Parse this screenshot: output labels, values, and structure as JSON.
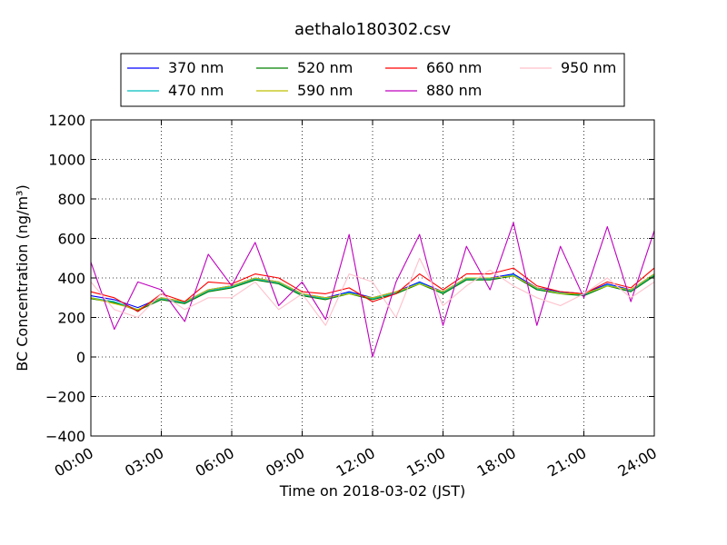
{
  "chart_data": {
    "type": "line",
    "title": "aethalo180302.csv",
    "xlabel": "Time on 2018-03-02 (JST)",
    "ylabel": "BC Concentration (ng/m³)",
    "xlim": [
      "2018-03-02 00:00",
      "2018-03-03 00:00"
    ],
    "ylim": [
      -400,
      1200
    ],
    "grid": true,
    "legend_position": "top, above plot",
    "x_ticks": [
      "00:00",
      "03:00",
      "06:00",
      "09:00",
      "12:00",
      "15:00",
      "18:00",
      "21:00",
      "24:00"
    ],
    "y_ticks": [
      -400,
      -200,
      0,
      200,
      400,
      600,
      800,
      1000,
      1200
    ],
    "x_sample_times": [
      "00:00",
      "01:00",
      "02:00",
      "03:00",
      "04:00",
      "05:00",
      "06:00",
      "07:00",
      "08:00",
      "09:00",
      "10:00",
      "11:00",
      "12:00",
      "13:00",
      "14:00",
      "15:00",
      "16:00",
      "17:00",
      "18:00",
      "19:00",
      "20:00",
      "21:00",
      "22:00",
      "23:00",
      "24:00"
    ],
    "series": [
      {
        "name": "370 nm",
        "color": "#0000ff",
        "values": [
          310,
          290,
          250,
          300,
          280,
          340,
          360,
          400,
          380,
          320,
          300,
          330,
          300,
          330,
          380,
          330,
          400,
          400,
          420,
          350,
          330,
          320,
          370,
          340,
          420
        ]
      },
      {
        "name": "470 nm",
        "color": "#00bfbf",
        "values": [
          300,
          280,
          240,
          295,
          275,
          335,
          355,
          395,
          375,
          315,
          295,
          325,
          295,
          325,
          375,
          325,
          395,
          395,
          415,
          345,
          325,
          315,
          365,
          335,
          415
        ]
      },
      {
        "name": "520 nm",
        "color": "#008000",
        "values": [
          295,
          275,
          235,
          290,
          270,
          330,
          350,
          390,
          370,
          310,
          290,
          320,
          290,
          320,
          370,
          320,
          390,
          390,
          410,
          340,
          320,
          310,
          360,
          330,
          410
        ]
      },
      {
        "name": "590 nm",
        "color": "#bfbf00",
        "values": [
          300,
          270,
          240,
          300,
          280,
          340,
          360,
          400,
          380,
          320,
          300,
          320,
          300,
          330,
          370,
          330,
          400,
          400,
          410,
          350,
          320,
          320,
          360,
          340,
          420
        ]
      },
      {
        "name": "660 nm",
        "color": "#ff0000",
        "values": [
          330,
          300,
          230,
          320,
          280,
          380,
          370,
          420,
          400,
          330,
          320,
          350,
          280,
          320,
          420,
          340,
          420,
          420,
          450,
          360,
          330,
          320,
          380,
          350,
          450
        ]
      },
      {
        "name": "880 nm",
        "color": "#bf00bf",
        "values": [
          480,
          140,
          380,
          340,
          180,
          520,
          360,
          580,
          260,
          380,
          190,
          620,
          0,
          380,
          620,
          160,
          560,
          340,
          680,
          160,
          560,
          300,
          660,
          280,
          640
        ]
      },
      {
        "name": "950 nm",
        "color": "#ffc0cb",
        "values": [
          380,
          240,
          200,
          320,
          240,
          300,
          300,
          380,
          240,
          320,
          160,
          420,
          380,
          200,
          500,
          260,
          360,
          440,
          360,
          300,
          260,
          320,
          400,
          300,
          380
        ]
      }
    ]
  }
}
